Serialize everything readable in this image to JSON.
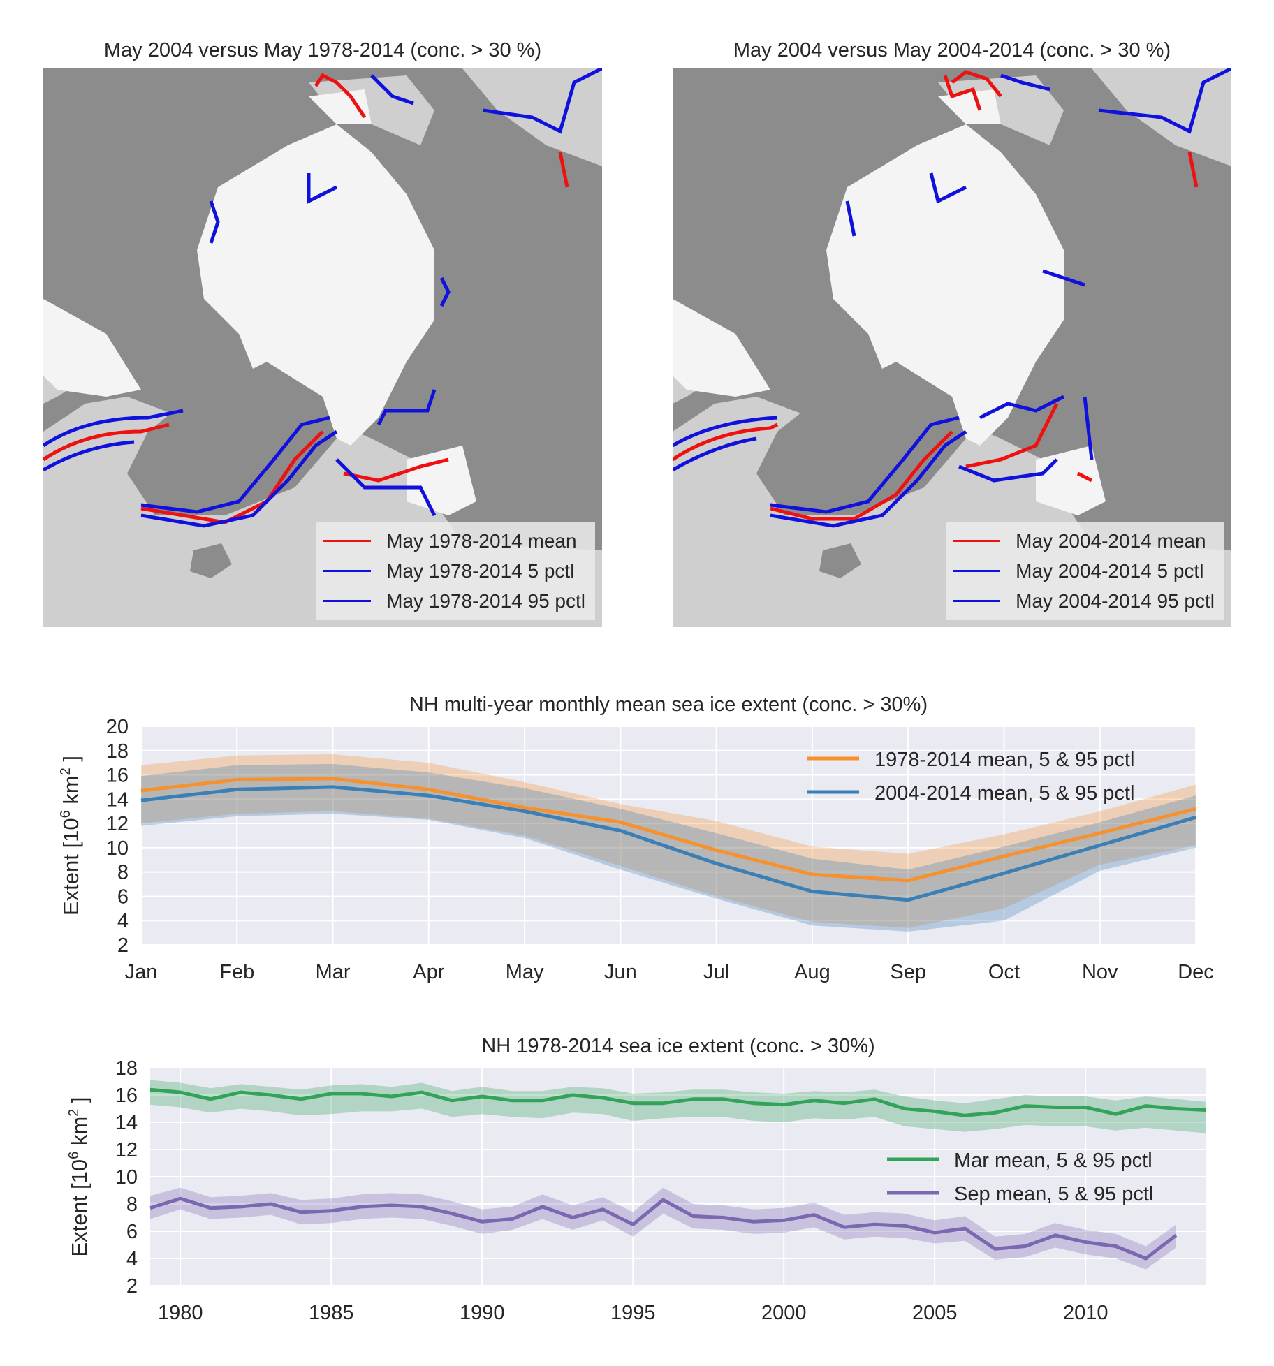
{
  "colors": {
    "map_land": "#8c8c8c",
    "map_sea": "#cfcfcf",
    "map_ice": "#f4f4f4",
    "mean_line": "#ee1111",
    "pctl_line": "#1111dd",
    "orange": "#f5922f",
    "blue": "#3a7fb5",
    "green": "#33a35a",
    "purple": "#7b68b0",
    "plot_bg": "#eaeaf2",
    "grid": "#ffffff"
  },
  "map_left": {
    "title": "May 2004 versus May 1978-2014 (conc. > 30 %)",
    "legend": [
      {
        "label": "May 1978-2014 mean",
        "color": "#ee1111"
      },
      {
        "label": "May 1978-2014 5 pctl",
        "color": "#1111dd"
      },
      {
        "label": "May 1978-2014 95 pctl",
        "color": "#1111dd"
      }
    ]
  },
  "map_right": {
    "title": "May 2004 versus May 2004-2014 (conc. > 30 %)",
    "legend": [
      {
        "label": "May 2004-2014 mean",
        "color": "#ee1111"
      },
      {
        "label": "May 2004-2014 5 pctl",
        "color": "#1111dd"
      },
      {
        "label": "May 2004-2014 95 pctl",
        "color": "#1111dd"
      }
    ]
  },
  "chart_data": [
    {
      "type": "line",
      "title": "NH multi-year monthly mean sea ice extent (conc. > 30%)",
      "ylabel": "Extent [10^6 km^2]",
      "xlabel": "",
      "categories": [
        "Jan",
        "Feb",
        "Mar",
        "Apr",
        "May",
        "Jun",
        "Jul",
        "Aug",
        "Sep",
        "Oct",
        "Nov",
        "Dec"
      ],
      "ylim": [
        2,
        20
      ],
      "yticks": [
        2,
        4,
        6,
        8,
        10,
        12,
        14,
        16,
        18,
        20
      ],
      "grid": true,
      "legend_position": "top-right",
      "series": [
        {
          "name": "1978-2014 mean, 5 & 95 pctl",
          "color": "#f5922f",
          "mean": [
            14.7,
            15.6,
            15.7,
            14.8,
            13.3,
            12.1,
            9.8,
            7.8,
            7.3,
            9.3,
            11.2,
            13.2
          ],
          "p5": [
            12.0,
            12.8,
            13.0,
            12.4,
            11.0,
            8.5,
            6.0,
            3.9,
            3.4,
            5.0,
            8.6,
            10.2
          ],
          "p95": [
            16.8,
            17.6,
            17.7,
            17.0,
            15.4,
            13.6,
            12.2,
            10.1,
            9.5,
            11.1,
            13.0,
            15.2
          ]
        },
        {
          "name": "2004-2014 mean, 5 & 95 pctl",
          "color": "#3a7fb5",
          "mean": [
            13.9,
            14.8,
            15.0,
            14.3,
            13.0,
            11.4,
            8.7,
            6.4,
            5.7,
            7.9,
            10.2,
            12.5
          ],
          "p5": [
            11.8,
            12.6,
            12.8,
            12.3,
            10.8,
            8.2,
            5.8,
            3.6,
            3.1,
            4.0,
            8.1,
            10.0
          ],
          "p95": [
            15.9,
            16.8,
            16.9,
            16.2,
            14.9,
            13.2,
            11.2,
            9.1,
            8.2,
            10.1,
            12.1,
            14.3
          ]
        }
      ]
    },
    {
      "type": "line",
      "title": "NH 1978-2014 sea ice extent (conc. > 30%)",
      "ylabel": "Extent [10^6 km^2]",
      "xlabel": "",
      "xlim": [
        1979,
        2014
      ],
      "xticks": [
        1980,
        1985,
        1990,
        1995,
        2000,
        2005,
        2010
      ],
      "ylim": [
        2,
        18
      ],
      "yticks": [
        2,
        4,
        6,
        8,
        10,
        12,
        14,
        16,
        18
      ],
      "grid": true,
      "legend_position": "center-right",
      "series": [
        {
          "name": "Mar mean, 5 & 95 pctl",
          "color": "#33a35a",
          "x": [
            1979,
            1980,
            1981,
            1982,
            1983,
            1984,
            1985,
            1986,
            1987,
            1988,
            1989,
            1990,
            1991,
            1992,
            1993,
            1994,
            1995,
            1996,
            1997,
            1998,
            1999,
            2000,
            2001,
            2002,
            2003,
            2004,
            2005,
            2006,
            2007,
            2008,
            2009,
            2010,
            2011,
            2012,
            2013,
            2014
          ],
          "mean": [
            16.4,
            16.2,
            15.7,
            16.2,
            16.0,
            15.7,
            16.1,
            16.1,
            15.9,
            16.2,
            15.6,
            15.9,
            15.6,
            15.6,
            16.0,
            15.8,
            15.4,
            15.4,
            15.7,
            15.7,
            15.4,
            15.3,
            15.6,
            15.4,
            15.7,
            15.0,
            14.8,
            14.5,
            14.7,
            15.2,
            15.1,
            15.1,
            14.6,
            15.2,
            15.0,
            14.9
          ],
          "p5": [
            15.3,
            15.1,
            14.7,
            15.0,
            14.8,
            14.5,
            14.6,
            14.8,
            14.8,
            15.0,
            14.4,
            14.6,
            14.4,
            14.3,
            14.7,
            14.6,
            14.1,
            14.3,
            14.4,
            14.4,
            14.1,
            14.0,
            14.3,
            14.2,
            14.4,
            13.7,
            13.5,
            13.3,
            13.5,
            13.8,
            13.7,
            13.7,
            13.4,
            13.6,
            13.4,
            13.2
          ],
          "p95": [
            17.1,
            16.9,
            16.5,
            16.8,
            16.6,
            16.4,
            16.7,
            16.8,
            16.6,
            16.9,
            16.3,
            16.6,
            16.3,
            16.3,
            16.6,
            16.5,
            16.1,
            16.2,
            16.4,
            16.4,
            16.2,
            16.1,
            16.3,
            16.2,
            16.4,
            15.9,
            15.6,
            15.4,
            15.7,
            16.0,
            15.9,
            15.9,
            15.6,
            15.9,
            15.7,
            15.5
          ]
        },
        {
          "name": "Sep mean, 5 & 95 pctl",
          "color": "#7b68b0",
          "x": [
            1979,
            1980,
            1981,
            1982,
            1983,
            1984,
            1985,
            1986,
            1987,
            1988,
            1989,
            1990,
            1991,
            1992,
            1993,
            1994,
            1995,
            1996,
            1997,
            1998,
            1999,
            2000,
            2001,
            2002,
            2003,
            2004,
            2005,
            2006,
            2007,
            2008,
            2009,
            2010,
            2011,
            2012,
            2013
          ],
          "mean": [
            7.7,
            8.4,
            7.7,
            7.8,
            8.0,
            7.4,
            7.5,
            7.8,
            7.9,
            7.8,
            7.3,
            6.7,
            6.9,
            7.8,
            7.0,
            7.6,
            6.5,
            8.3,
            7.1,
            7.0,
            6.7,
            6.8,
            7.2,
            6.3,
            6.5,
            6.4,
            5.9,
            6.2,
            4.7,
            4.9,
            5.7,
            5.2,
            4.9,
            4.0,
            5.7
          ],
          "p5": [
            6.9,
            7.6,
            6.9,
            7.0,
            7.2,
            6.5,
            6.6,
            6.9,
            7.0,
            6.9,
            6.4,
            5.8,
            6.1,
            6.9,
            6.1,
            6.8,
            5.6,
            7.3,
            6.2,
            6.1,
            5.8,
            5.9,
            6.3,
            5.4,
            5.6,
            5.5,
            5.1,
            5.3,
            3.9,
            4.1,
            4.8,
            4.3,
            4.0,
            3.2,
            4.8
          ],
          "p95": [
            8.6,
            9.2,
            8.5,
            8.6,
            8.8,
            8.3,
            8.4,
            8.7,
            8.8,
            8.7,
            8.2,
            7.6,
            7.8,
            8.7,
            7.9,
            8.5,
            7.4,
            9.2,
            8.0,
            7.9,
            7.6,
            7.7,
            8.1,
            7.2,
            7.4,
            7.3,
            6.8,
            7.1,
            5.6,
            5.8,
            6.6,
            6.1,
            5.8,
            4.9,
            6.5
          ]
        }
      ]
    }
  ]
}
